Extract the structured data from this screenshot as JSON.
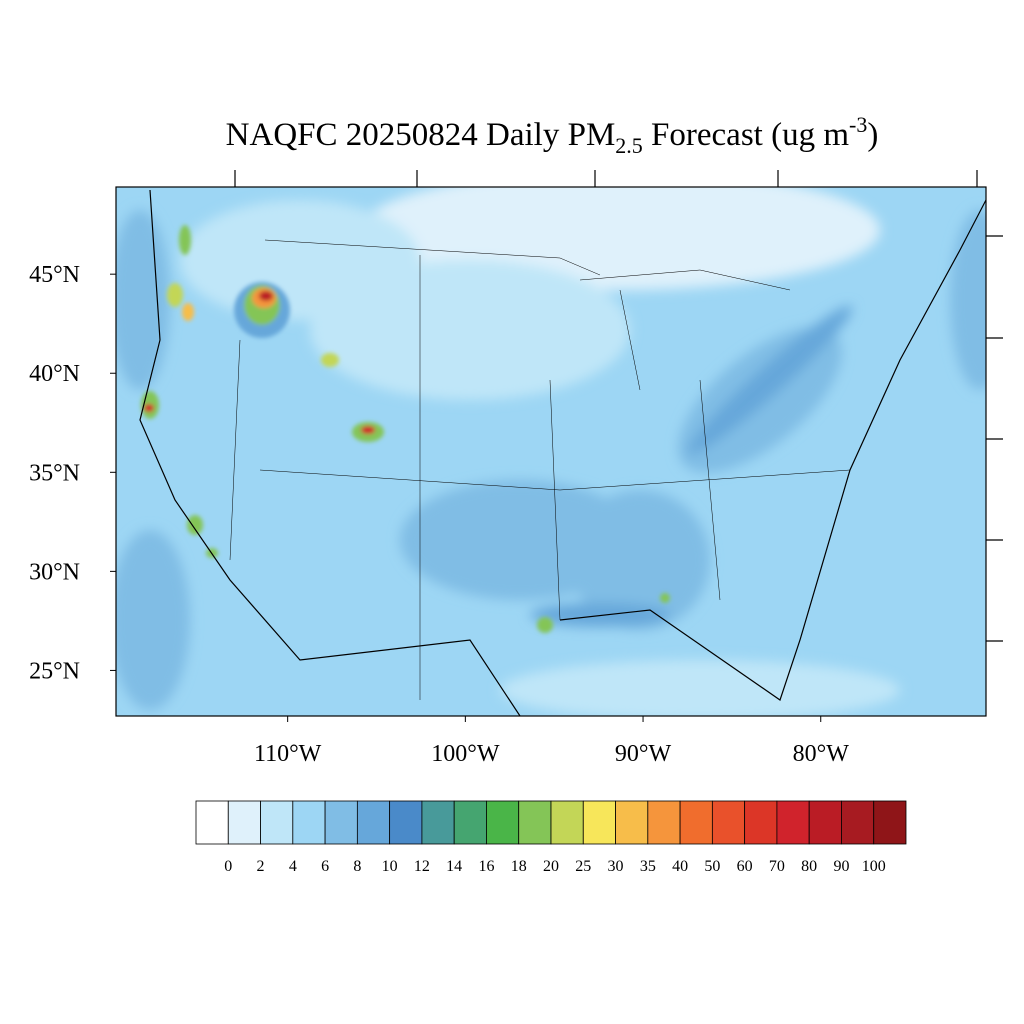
{
  "map": {
    "title": {
      "main": "NAQFC 20250824 Daily PM",
      "sub": "2.5",
      "middle": " Forecast (ug m",
      "sup": "-3",
      "end": ")"
    },
    "lat_range": [
      22.7,
      49.4
    ],
    "lon_range": [
      -119.66,
      -70.7
    ],
    "lat_ticks": [
      {
        "value": 45,
        "label": "45°N"
      },
      {
        "value": 40,
        "label": "40°N"
      },
      {
        "value": 35,
        "label": "35°N"
      },
      {
        "value": 30,
        "label": "30°N"
      },
      {
        "value": 25,
        "label": "25°N"
      }
    ],
    "lon_ticks": [
      {
        "value": -110,
        "label": "110°W"
      },
      {
        "value": -100,
        "label": "100°W"
      },
      {
        "value": -90,
        "label": "90°W"
      },
      {
        "value": -80,
        "label": "80°W"
      }
    ]
  },
  "colorbar": {
    "levels": [
      0,
      2,
      4,
      6,
      8,
      10,
      12,
      14,
      16,
      18,
      20,
      25,
      30,
      35,
      40,
      50,
      60,
      70,
      80,
      90,
      100
    ],
    "colors": [
      "#ffffff",
      "#dff1fb",
      "#bfe6f8",
      "#9dd6f4",
      "#80bde5",
      "#66a7da",
      "#4a8ac9",
      "#489a9a",
      "#45a570",
      "#4ab548",
      "#84c557",
      "#c3d657",
      "#f7e65a",
      "#f7bd4a",
      "#f5953c",
      "#f06d2d",
      "#e9512b",
      "#dc3627",
      "#d0232c",
      "#ba1c25",
      "#a71b21",
      "#8f1518"
    ]
  }
}
